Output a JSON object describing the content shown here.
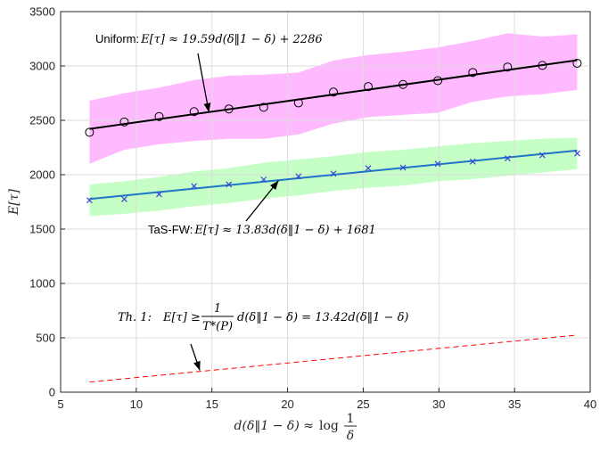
{
  "chart_data": {
    "type": "line",
    "xlabel": "d(δ‖1 − δ) ≈ log 1/δ",
    "ylabel": "E[τ]",
    "xlim": [
      5,
      40
    ],
    "ylim": [
      0,
      3500
    ],
    "xticks": [
      5,
      10,
      15,
      20,
      25,
      30,
      35,
      40
    ],
    "yticks": [
      0,
      500,
      1000,
      1500,
      2000,
      2500,
      3000,
      3500
    ],
    "grid": true,
    "x": [
      6.91,
      9.21,
      11.51,
      13.82,
      16.12,
      18.42,
      20.72,
      23.03,
      25.33,
      27.63,
      29.93,
      32.24,
      34.54,
      36.84,
      39.14
    ],
    "series": [
      {
        "marker": "circle",
        "color": "#000000",
        "values": [
          2390,
          2485,
          2535,
          2580,
          2605,
          2620,
          2660,
          2760,
          2810,
          2830,
          2865,
          2940,
          2990,
          3005,
          3025
        ]
      },
      {
        "fit": [
          19.59,
          2286
        ],
        "color": "#000000",
        "line": "solid"
      },
      {
        "band": "upper_lower",
        "color": "#ff66ff",
        "upper": [
          2680,
          2750,
          2800,
          2870,
          2910,
          2920,
          2940,
          3050,
          3100,
          3130,
          3170,
          3230,
          3300,
          3270,
          3290
        ],
        "lower": [
          2100,
          2230,
          2280,
          2310,
          2330,
          2330,
          2370,
          2470,
          2530,
          2550,
          2570,
          2670,
          2720,
          2740,
          2780
        ]
      },
      {
        "marker": "x",
        "color": "#3b45d6",
        "values": [
          1765,
          1775,
          1820,
          1895,
          1910,
          1955,
          1985,
          2010,
          2060,
          2065,
          2100,
          2120,
          2150,
          2180,
          2195
        ]
      },
      {
        "fit": [
          13.83,
          1681
        ],
        "color": "#1f74c7",
        "line": "solid"
      },
      {
        "band": "upper_lower",
        "color": "#7fff7f",
        "upper": [
          1910,
          1940,
          1980,
          2030,
          2060,
          2110,
          2140,
          2170,
          2210,
          2230,
          2260,
          2290,
          2310,
          2330,
          2340
        ],
        "lower": [
          1620,
          1640,
          1670,
          1710,
          1740,
          1780,
          1810,
          1850,
          1880,
          1900,
          1940,
          1960,
          1990,
          2020,
          2050
        ]
      },
      {
        "bound": [
          13.42,
          0
        ],
        "color": "#ff0000",
        "line": "dashed"
      }
    ],
    "annotations": {
      "uniform": {
        "label_sans": "Uniform:",
        "label_math": "E[τ] ≈ 19.59d(δ‖1 − δ) + 2286",
        "target_x": 14.8,
        "target_y": 2575
      },
      "tasfw": {
        "label_sans": "TaS-FW:",
        "label_math": "E[τ] ≈ 13.83d(δ‖1 − δ) + 1681",
        "target_x": 19.4,
        "target_y": 1945
      },
      "theorem": {
        "label_prefix": "Th. 1:",
        "label_lhs": "E[τ] ≥",
        "frac_num": "1",
        "frac_den": "T*(P)",
        "label_rhs": "d(δ‖1 − δ) = 13.42d(δ‖1 − δ)",
        "target_x": 14.2,
        "target_y": 200
      }
    }
  }
}
